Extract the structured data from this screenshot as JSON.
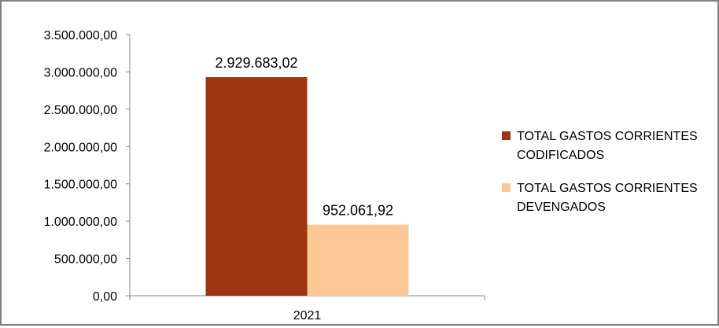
{
  "chart_data": {
    "type": "bar",
    "title": "",
    "xlabel": "",
    "ylabel": "",
    "categories": [
      "2021"
    ],
    "ylim": [
      0,
      3500000
    ],
    "yticks": [
      0,
      500000,
      1000000,
      1500000,
      2000000,
      2500000,
      3000000,
      3500000
    ],
    "ytick_labels": [
      "0,00",
      "500.000,00",
      "1.000.000,00",
      "1.500.000,00",
      "2.000.000,00",
      "2.500.000,00",
      "3.000.000,00",
      "3.500.000,00"
    ],
    "grid": false,
    "legend_position": "right",
    "series": [
      {
        "name": "TOTAL GASTOS CORRIENTES CODIFICADOS",
        "name_lines": [
          "TOTAL GASTOS CORRIENTES",
          "CODIFICADOS"
        ],
        "values": [
          2929683.02
        ],
        "value_labels": [
          "2.929.683,02"
        ],
        "color": "#9c3510"
      },
      {
        "name": "TOTAL GASTOS CORRIENTES DEVENGADOS",
        "name_lines": [
          "TOTAL GASTOS CORRIENTES",
          "DEVENGADOS"
        ],
        "values": [
          952061.92
        ],
        "value_labels": [
          "952.061,92"
        ],
        "color": "#fcc996"
      }
    ]
  }
}
